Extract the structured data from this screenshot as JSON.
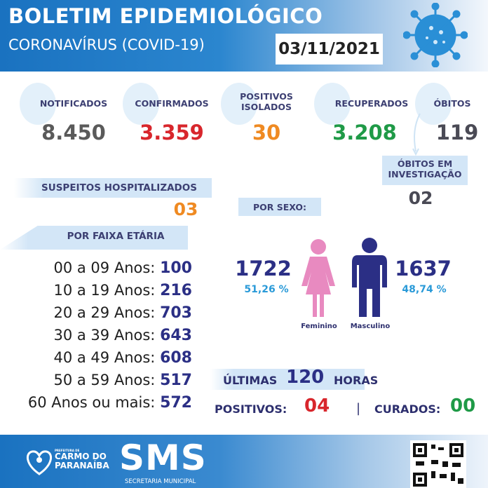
{
  "header": {
    "title": "BOLETIM EPIDEMIOLÓGICO",
    "subtitle": "CORONAVÍRUS (COVID-19)",
    "date": "03/11/2021"
  },
  "stats": [
    {
      "label": "NOTIFICADOS",
      "value": "8.450",
      "color": "#5a5a5a"
    },
    {
      "label": "CONFIRMADOS",
      "value": "3.359",
      "color": "#d8262c"
    },
    {
      "label": "POSITIVOS ISOLADOS",
      "value": "30",
      "color": "#ef8a22"
    },
    {
      "label": "RECUPERADOS",
      "value": "3.208",
      "color": "#1f9a47"
    },
    {
      "label": "ÓBITOS",
      "value": "119",
      "color": "#4a4a55"
    }
  ],
  "obitos_investigacao": {
    "label": "ÓBITOS EM INVESTIGAÇÃO",
    "value": "02"
  },
  "suspeitos": {
    "label": "SUSPEITOS HOSPITALIZADOS",
    "value": "03"
  },
  "faixa_etaria": {
    "label": "POR FAIXA ETÁRIA",
    "items": [
      {
        "range": "00 a 09 Anos:",
        "value": "100"
      },
      {
        "range": "10 a 19 Anos:",
        "value": "216"
      },
      {
        "range": "20 a 29 Anos:",
        "value": "703"
      },
      {
        "range": "30 a 39 Anos:",
        "value": "643"
      },
      {
        "range": "40 a 49 Anos:",
        "value": "608"
      },
      {
        "range": "50 a 59 Anos:",
        "value": "517"
      },
      {
        "range": "60 Anos ou mais:",
        "value": "572"
      }
    ]
  },
  "sexo": {
    "label": "POR SEXO:",
    "feminino": {
      "label": "Feminino",
      "value": "1722",
      "pct": "51,26 %",
      "color": "#e88ac0"
    },
    "masculino": {
      "label": "Masculino",
      "value": "1637",
      "pct": "48,74 %",
      "color": "#2b2f85"
    }
  },
  "ultimas": {
    "prefix": "ÚLTIMAS",
    "hours": "120",
    "suffix": "HORAS",
    "positivos_label": "POSITIVOS:",
    "positivos": "04",
    "sep": "|",
    "curados_label": "CURADOS:",
    "curados": "00"
  },
  "footer": {
    "prefeitura": "PREFEITURA DE",
    "city1": "CARMO DO",
    "city2": "PARANAÍBA",
    "sms": "SMS",
    "secretaria": "SECRETARIA MUNICIPAL"
  }
}
